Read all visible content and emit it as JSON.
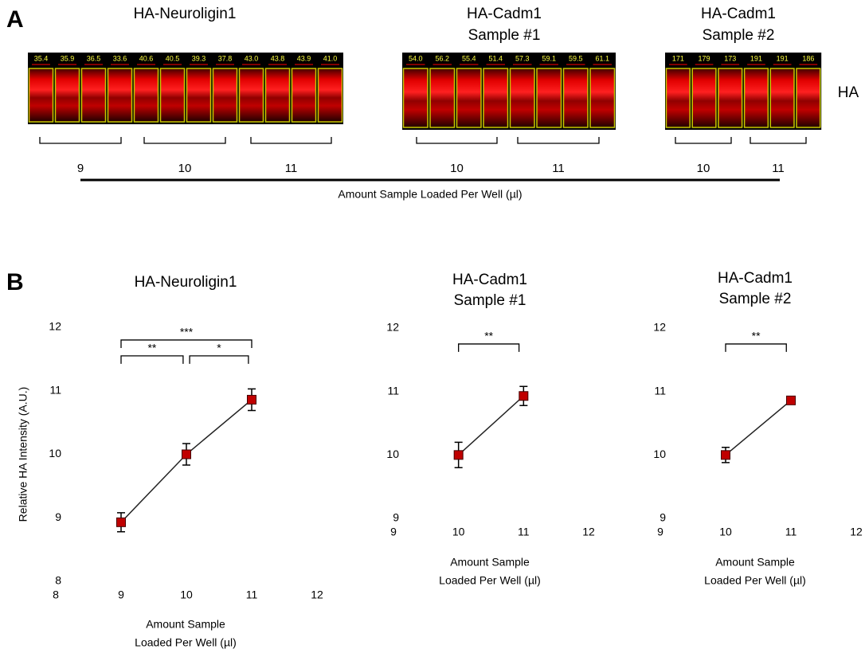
{
  "panel_a": {
    "label": "A",
    "row_label": "HA",
    "axis_label": "Amount Sample Loaded Per Well (µl)",
    "groups": [
      {
        "title": [
          "HA-Neuroligin1"
        ],
        "lanes": [
          "35.4",
          "35.9",
          "36.5",
          "33.6",
          "40.6",
          "40.5",
          "39.3",
          "37.8",
          "43.0",
          "43.8",
          "43.9",
          "41.0"
        ],
        "brackets": [
          "9",
          "10",
          "11"
        ]
      },
      {
        "title": [
          "HA-Cadm1",
          "Sample #1"
        ],
        "lanes": [
          "54.0",
          "56.2",
          "55.4",
          "51.4",
          "57.3",
          "59.1",
          "59.5",
          "61.1"
        ],
        "brackets": [
          "10",
          "11"
        ]
      },
      {
        "title": [
          "HA-Cadm1",
          "Sample #2"
        ],
        "lanes": [
          "171",
          "179",
          "173",
          "191",
          "191",
          "186"
        ],
        "brackets": [
          "10",
          "11"
        ]
      }
    ]
  },
  "panel_b_label": "B",
  "chart_data": [
    {
      "type": "line",
      "title": [
        "HA-Neuroligin1"
      ],
      "y_label": "Relative HA Intensity (A.U.)",
      "x_label": [
        "Amount Sample",
        "Loaded Per Well (µl)"
      ],
      "x": [
        9,
        10,
        11
      ],
      "series": [
        {
          "color": "#c00000",
          "values": [
            8.93,
            10.0,
            10.86
          ],
          "errors": [
            0.15,
            0.17,
            0.17
          ]
        }
      ],
      "xlim": [
        8,
        12
      ],
      "xticks": [
        8,
        9,
        10,
        11,
        12
      ],
      "ylim": [
        8,
        12
      ],
      "yticks": [
        8,
        9,
        10,
        11,
        12
      ],
      "annotations": [
        {
          "text": "***",
          "x": [
            9,
            11
          ],
          "y": 11.8
        },
        {
          "text": "**",
          "x": [
            9,
            9.95
          ],
          "y": 11.55
        },
        {
          "text": "*",
          "x": [
            10.05,
            10.95
          ],
          "y": 11.55
        }
      ]
    },
    {
      "type": "line",
      "title": [
        "HA-Cadm1",
        "Sample #1"
      ],
      "x_label": [
        "Amount Sample",
        "Loaded Per Well (µl)"
      ],
      "x": [
        10,
        11
      ],
      "series": [
        {
          "color": "#c00000",
          "values": [
            10.0,
            10.93
          ],
          "errors": [
            0.2,
            0.15
          ]
        }
      ],
      "xlim": [
        9,
        12
      ],
      "xticks": [
        9,
        10,
        11,
        12
      ],
      "ylim": [
        9,
        12
      ],
      "yticks": [
        9,
        10,
        11,
        12
      ],
      "annotations": [
        {
          "text": "**",
          "x": [
            10,
            10.93
          ],
          "y": 11.75
        }
      ]
    },
    {
      "type": "line",
      "title": [
        "HA-Cadm1",
        "Sample #2"
      ],
      "x_label": [
        "Amount Sample",
        "Loaded Per Well (µl)"
      ],
      "x": [
        10,
        11
      ],
      "series": [
        {
          "color": "#c00000",
          "values": [
            10.0,
            10.86
          ],
          "errors": [
            0.12,
            0.06
          ]
        }
      ],
      "xlim": [
        9,
        12
      ],
      "xticks": [
        9,
        10,
        11,
        12
      ],
      "ylim": [
        9,
        12
      ],
      "yticks": [
        9,
        10,
        11,
        12
      ],
      "annotations": [
        {
          "text": "**",
          "x": [
            10,
            10.93
          ],
          "y": 11.75
        }
      ]
    }
  ]
}
